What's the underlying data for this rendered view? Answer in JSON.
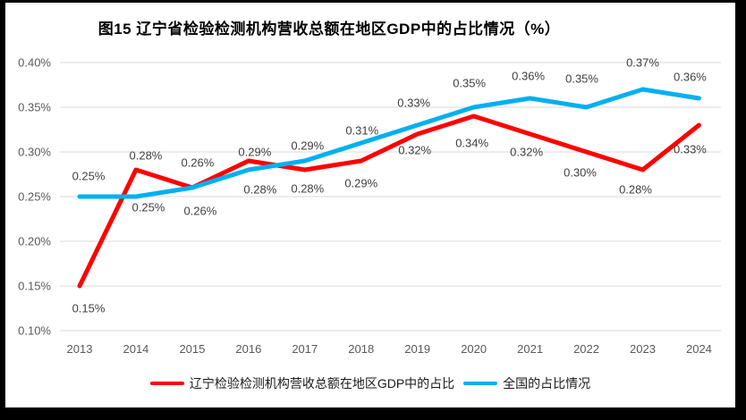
{
  "chart_data": {
    "type": "line",
    "title": "图15 辽宁省检验检测机构营收总额在地区GDP中的占比情况（%）",
    "categories": [
      "2013",
      "2014",
      "2015",
      "2016",
      "2017",
      "2018",
      "2019",
      "2020",
      "2021",
      "2022",
      "2023",
      "2024"
    ],
    "series": [
      {
        "name": "辽宁检验检测机构营收总额在地区GDP中的占比",
        "color": "#FF0000",
        "values": [
          0.15,
          0.28,
          0.26,
          0.29,
          0.28,
          0.29,
          0.32,
          0.34,
          0.32,
          0.3,
          0.28,
          0.33
        ],
        "labels": [
          "0.15%",
          "0.28%",
          "0.26%",
          "0.29%",
          "0.28%",
          "0.29%",
          "0.32%",
          "0.34%",
          "0.32%",
          "0.30%",
          "0.28%",
          "0.33%"
        ]
      },
      {
        "name": "全国的占比情况",
        "color": "#00B0F0",
        "values": [
          0.25,
          0.25,
          0.26,
          0.28,
          0.29,
          0.31,
          0.33,
          0.35,
          0.36,
          0.35,
          0.37,
          0.36
        ],
        "labels": [
          "0.25%",
          "0.25%",
          "0.26%",
          "0.28%",
          "0.29%",
          "0.31%",
          "0.33%",
          "0.35%",
          "0.36%",
          "0.35%",
          "0.37%",
          "0.36%"
        ]
      }
    ],
    "y_axis": {
      "min": 0.1,
      "max": 0.4,
      "step": 0.05,
      "unit": "%",
      "tick_labels": [
        "0.10%",
        "0.15%",
        "0.20%",
        "0.25%",
        "0.30%",
        "0.35%",
        "0.40%"
      ]
    },
    "x_axis": {
      "label": ""
    },
    "grid": "horizontal",
    "legend_position": "bottom",
    "layout": {
      "label_offsets": [
        [
          [
            10,
            25
          ],
          [
            11,
            -16
          ],
          [
            6,
            -28
          ],
          [
            7,
            -10
          ],
          [
            3,
            21
          ],
          [
            0,
            25
          ],
          [
            -3,
            18
          ],
          [
            -2,
            30
          ],
          [
            -4,
            20
          ],
          [
            -7,
            23
          ],
          [
            -8,
            22
          ],
          [
            -10,
            27
          ]
        ],
        [
          [
            10,
            -23
          ],
          [
            14,
            12
          ],
          [
            9,
            26
          ],
          [
            13,
            22
          ],
          [
            3,
            -17
          ],
          [
            1,
            -14
          ],
          [
            -4,
            -25
          ],
          [
            -5,
            -27
          ],
          [
            -2,
            -25
          ],
          [
            -5,
            -32
          ],
          [
            0,
            -30
          ],
          [
            -10,
            -24
          ]
        ]
      ]
    },
    "colors": {
      "gridline": "#D9D9D9",
      "axis_text": "#595959",
      "data_label_text": "#404040",
      "frame": "#000000",
      "background": "#FFFFFF"
    }
  }
}
